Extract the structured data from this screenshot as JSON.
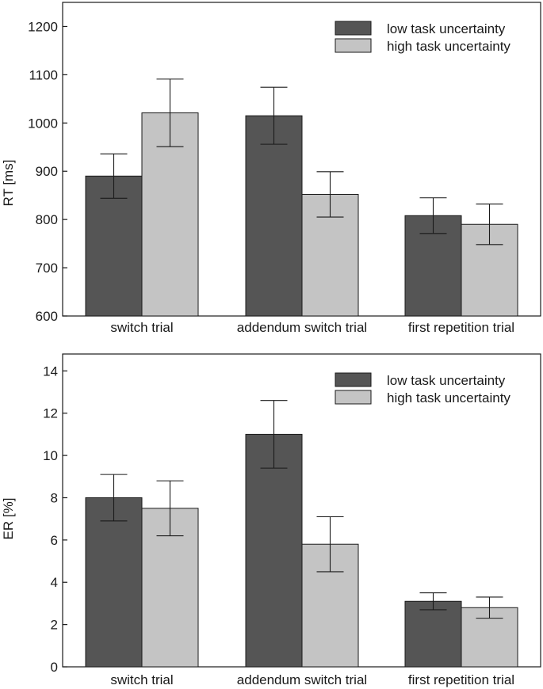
{
  "colors": {
    "low": "#555555",
    "high": "#c4c4c4",
    "axis": "#1a1a1a"
  },
  "chart_data": [
    {
      "type": "bar",
      "title": "",
      "xlabel": "",
      "ylabel": "RT [ms]",
      "ylim": [
        600,
        1250
      ],
      "yticks": [
        600,
        700,
        800,
        900,
        1000,
        1100,
        1200
      ],
      "categories": [
        "switch trial",
        "addendum switch trial",
        "first repetition trial"
      ],
      "legend_position": "top-right",
      "series": [
        {
          "name": "low task uncertainty",
          "values": [
            890,
            1015,
            808
          ],
          "errors": [
            46,
            59,
            37
          ]
        },
        {
          "name": "high task uncertainty",
          "values": [
            1021,
            852,
            790
          ],
          "errors": [
            70,
            47,
            42
          ]
        }
      ]
    },
    {
      "type": "bar",
      "title": "",
      "xlabel": "",
      "ylabel": "ER [%]",
      "ylim": [
        0,
        14.8
      ],
      "yticks": [
        0,
        2,
        4,
        6,
        8,
        10,
        12,
        14
      ],
      "categories": [
        "switch trial",
        "addendum switch trial",
        "first repetition trial"
      ],
      "legend_position": "top-right",
      "series": [
        {
          "name": "low task uncertainty",
          "values": [
            8.0,
            11.0,
            3.1
          ],
          "errors": [
            1.1,
            1.6,
            0.4
          ]
        },
        {
          "name": "high task uncertainty",
          "values": [
            7.5,
            5.8,
            2.8
          ],
          "errors": [
            1.3,
            1.3,
            0.5
          ]
        }
      ]
    }
  ]
}
